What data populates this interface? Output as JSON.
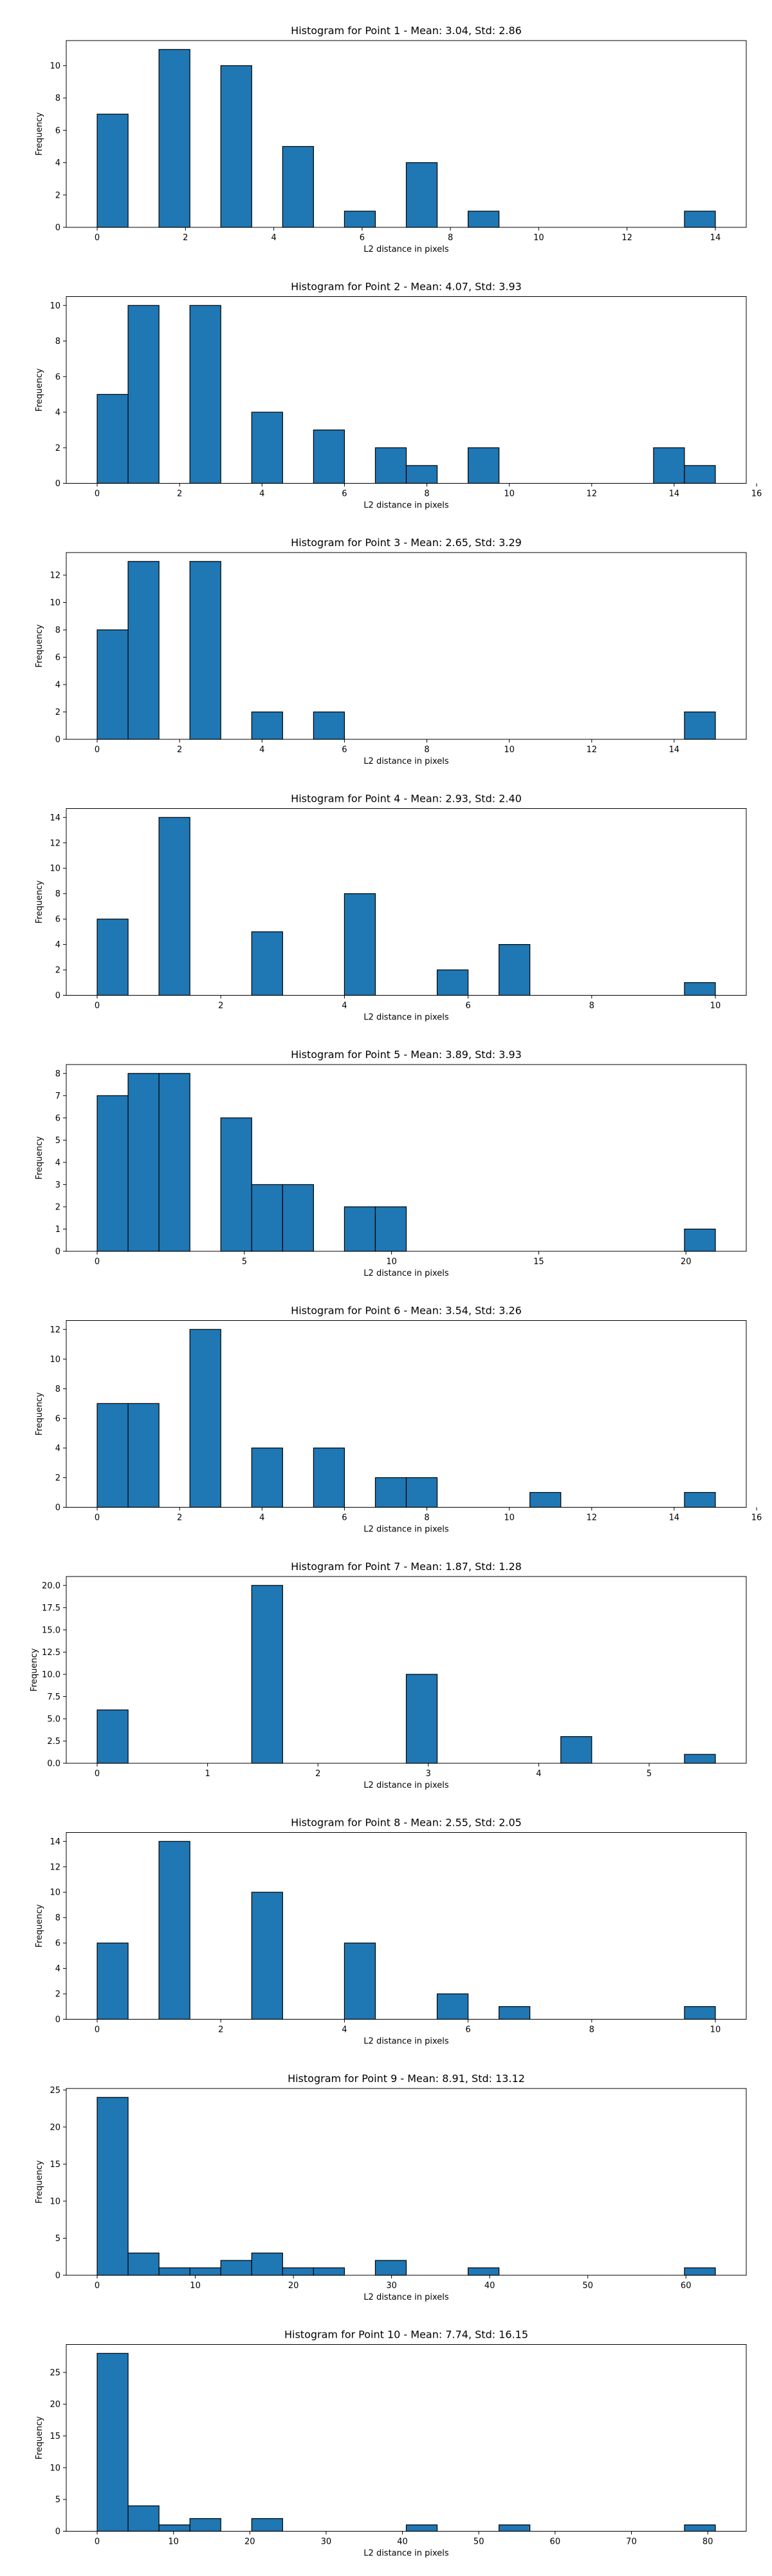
{
  "figure": {
    "bar_color": "#1f77b4",
    "edge_color": "#000000",
    "background": "#ffffff"
  },
  "chart_data": [
    {
      "type": "bar",
      "title": "Histogram for Point 1 - Mean: 3.04, Std: 2.86",
      "xlabel": "L2 distance in pixels",
      "ylabel": "Frequency",
      "bin_edges": [
        0.0,
        0.7,
        1.4,
        2.1,
        2.8,
        3.5,
        4.2,
        4.9,
        5.6,
        6.3,
        7.0,
        7.7,
        8.4,
        9.1,
        9.8,
        10.5,
        11.2,
        11.9,
        12.6,
        13.3,
        14.0
      ],
      "counts": [
        7,
        0,
        11,
        0,
        10,
        0,
        5,
        0,
        1,
        0,
        4,
        0,
        1,
        0,
        0,
        0,
        0,
        0,
        0,
        1
      ],
      "xlim": [
        -0.7,
        14.7
      ],
      "ylim": [
        0,
        11.55
      ],
      "xticks": [
        0,
        2,
        4,
        6,
        8,
        10,
        12,
        14
      ],
      "yticks": [
        0,
        2,
        4,
        6,
        8,
        10
      ]
    },
    {
      "type": "bar",
      "title": "Histogram for Point 2 - Mean: 4.07, Std: 3.93",
      "xlabel": "L2 distance in pixels",
      "ylabel": "Frequency",
      "bin_edges": [
        0.0,
        0.75,
        1.5,
        2.25,
        3.0,
        3.75,
        4.5,
        5.25,
        6.0,
        6.75,
        7.5,
        8.25,
        9.0,
        9.75,
        10.5,
        11.25,
        12.0,
        12.75,
        13.5,
        14.25,
        15.0
      ],
      "counts": [
        5,
        10,
        0,
        10,
        0,
        4,
        0,
        3,
        0,
        2,
        1,
        0,
        2,
        0,
        0,
        0,
        0,
        0,
        2,
        1
      ],
      "xlim": [
        -0.75,
        15.75
      ],
      "ylim": [
        0,
        10.5
      ],
      "xticks": [
        0,
        2,
        4,
        6,
        8,
        10,
        12,
        14,
        16
      ],
      "yticks": [
        0,
        2,
        4,
        6,
        8,
        10
      ]
    },
    {
      "type": "bar",
      "title": "Histogram for Point 3 - Mean: 2.65, Std: 3.29",
      "xlabel": "L2 distance in pixels",
      "ylabel": "Frequency",
      "bin_edges": [
        0.0,
        0.75,
        1.5,
        2.25,
        3.0,
        3.75,
        4.5,
        5.25,
        6.0,
        6.75,
        7.5,
        8.25,
        9.0,
        9.75,
        10.5,
        11.25,
        12.0,
        12.75,
        13.5,
        14.25,
        15.0
      ],
      "counts": [
        8,
        13,
        0,
        13,
        0,
        2,
        0,
        2,
        0,
        0,
        0,
        0,
        0,
        0,
        0,
        0,
        0,
        0,
        0,
        2
      ],
      "xlim": [
        -0.75,
        15.75
      ],
      "ylim": [
        0,
        13.65
      ],
      "xticks": [
        0,
        2,
        4,
        6,
        8,
        10,
        12,
        14
      ],
      "yticks": [
        0,
        2,
        4,
        6,
        8,
        10,
        12
      ]
    },
    {
      "type": "bar",
      "title": "Histogram for Point 4 - Mean: 2.93, Std: 2.40",
      "xlabel": "L2 distance in pixels",
      "ylabel": "Frequency",
      "bin_edges": [
        0.0,
        0.5,
        1.0,
        1.5,
        2.0,
        2.5,
        3.0,
        3.5,
        4.0,
        4.5,
        5.0,
        5.5,
        6.0,
        6.5,
        7.0,
        7.5,
        8.0,
        8.5,
        9.0,
        9.5,
        10.0
      ],
      "counts": [
        6,
        0,
        14,
        0,
        0,
        5,
        0,
        0,
        8,
        0,
        0,
        2,
        0,
        4,
        0,
        0,
        0,
        0,
        0,
        1
      ],
      "xlim": [
        -0.5,
        10.5
      ],
      "ylim": [
        0,
        14.7
      ],
      "xticks": [
        0,
        2,
        4,
        6,
        8,
        10
      ],
      "yticks": [
        0,
        2,
        4,
        6,
        8,
        10,
        12,
        14
      ]
    },
    {
      "type": "bar",
      "title": "Histogram for Point 5 - Mean: 3.89, Std: 3.93",
      "xlabel": "L2 distance in pixels",
      "ylabel": "Frequency",
      "bin_edges": [
        0.0,
        1.05,
        2.1,
        3.15,
        4.2,
        5.25,
        6.3,
        7.35,
        8.4,
        9.45,
        10.5,
        11.55,
        12.6,
        13.65,
        14.7,
        15.75,
        16.8,
        17.85,
        18.9,
        19.95,
        21.0
      ],
      "counts": [
        7,
        8,
        8,
        0,
        6,
        3,
        3,
        0,
        2,
        2,
        0,
        0,
        0,
        0,
        0,
        0,
        0,
        0,
        0,
        1
      ],
      "xlim": [
        -1.05,
        22.05
      ],
      "ylim": [
        0,
        8.4
      ],
      "xticks": [
        0,
        5,
        10,
        15,
        20
      ],
      "yticks": [
        0,
        1,
        2,
        3,
        4,
        5,
        6,
        7,
        8
      ]
    },
    {
      "type": "bar",
      "title": "Histogram for Point 6 - Mean: 3.54, Std: 3.26",
      "xlabel": "L2 distance in pixels",
      "ylabel": "Frequency",
      "bin_edges": [
        0.0,
        0.75,
        1.5,
        2.25,
        3.0,
        3.75,
        4.5,
        5.25,
        6.0,
        6.75,
        7.5,
        8.25,
        9.0,
        9.75,
        10.5,
        11.25,
        12.0,
        12.75,
        13.5,
        14.25,
        15.0
      ],
      "counts": [
        7,
        7,
        0,
        12,
        0,
        4,
        0,
        4,
        0,
        2,
        2,
        0,
        0,
        0,
        1,
        0,
        0,
        0,
        0,
        1
      ],
      "xlim": [
        -0.75,
        15.75
      ],
      "ylim": [
        0,
        12.6
      ],
      "xticks": [
        0,
        2,
        4,
        6,
        8,
        10,
        12,
        14,
        16
      ],
      "yticks": [
        0,
        2,
        4,
        6,
        8,
        10,
        12
      ]
    },
    {
      "type": "bar",
      "title": "Histogram for Point 7 - Mean: 1.87, Std: 1.28",
      "xlabel": "L2 distance in pixels",
      "ylabel": "Frequency",
      "bin_edges": [
        0.0,
        0.28,
        0.56,
        0.84,
        1.12,
        1.4,
        1.68,
        1.96,
        2.24,
        2.52,
        2.8,
        3.08,
        3.36,
        3.64,
        3.92,
        4.2,
        4.48,
        4.76,
        5.04,
        5.32,
        5.6
      ],
      "counts": [
        6,
        0,
        0,
        0,
        0,
        20,
        0,
        0,
        0,
        0,
        10,
        0,
        0,
        0,
        0,
        3,
        0,
        0,
        0,
        1
      ],
      "xlim": [
        -0.28,
        5.88
      ],
      "ylim": [
        0,
        21.0
      ],
      "xticks": [
        0,
        1,
        2,
        3,
        4,
        5
      ],
      "yticks": [
        0,
        2.5,
        5,
        7.5,
        10,
        12.5,
        15,
        17.5,
        20
      ],
      "ytick_labels": [
        "0.0",
        "2.5",
        "5.0",
        "7.5",
        "10.0",
        "12.5",
        "15.0",
        "17.5",
        "20.0"
      ]
    },
    {
      "type": "bar",
      "title": "Histogram for Point 8 - Mean: 2.55, Std: 2.05",
      "xlabel": "L2 distance in pixels",
      "ylabel": "Frequency",
      "bin_edges": [
        0.0,
        0.5,
        1.0,
        1.5,
        2.0,
        2.5,
        3.0,
        3.5,
        4.0,
        4.5,
        5.0,
        5.5,
        6.0,
        6.5,
        7.0,
        7.5,
        8.0,
        8.5,
        9.0,
        9.5,
        10.0
      ],
      "counts": [
        6,
        0,
        14,
        0,
        0,
        10,
        0,
        0,
        6,
        0,
        0,
        2,
        0,
        1,
        0,
        0,
        0,
        0,
        0,
        1
      ],
      "xlim": [
        -0.5,
        10.5
      ],
      "ylim": [
        0,
        14.7
      ],
      "xticks": [
        0,
        2,
        4,
        6,
        8,
        10
      ],
      "yticks": [
        0,
        2,
        4,
        6,
        8,
        10,
        12,
        14
      ]
    },
    {
      "type": "bar",
      "title": "Histogram for Point 9 - Mean: 8.91, Std: 13.12",
      "xlabel": "L2 distance in pixels",
      "ylabel": "Frequency",
      "bin_edges": [
        0.0,
        3.15,
        6.3,
        9.45,
        12.6,
        15.75,
        18.9,
        22.05,
        25.2,
        28.35,
        31.5,
        34.65,
        37.8,
        40.95,
        44.1,
        47.25,
        50.4,
        53.55,
        56.7,
        59.85,
        63.0
      ],
      "counts": [
        24,
        3,
        1,
        1,
        2,
        3,
        1,
        1,
        0,
        2,
        0,
        0,
        1,
        0,
        0,
        0,
        0,
        0,
        0,
        1
      ],
      "xlim": [
        -3.15,
        66.15
      ],
      "ylim": [
        0,
        25.2
      ],
      "xticks": [
        0,
        10,
        20,
        30,
        40,
        50,
        60
      ],
      "yticks": [
        0,
        5,
        10,
        15,
        20,
        25
      ]
    },
    {
      "type": "bar",
      "title": "Histogram for Point 10 - Mean: 7.74, Std: 16.15",
      "xlabel": "L2 distance in pixels",
      "ylabel": "Frequency",
      "bin_edges": [
        0.0,
        4.05,
        8.1,
        12.15,
        16.2,
        20.25,
        24.3,
        28.35,
        32.4,
        36.45,
        40.5,
        44.55,
        48.6,
        52.65,
        56.7,
        60.75,
        64.8,
        68.85,
        72.9,
        76.95,
        81.0
      ],
      "counts": [
        28,
        4,
        1,
        2,
        0,
        2,
        0,
        0,
        0,
        0,
        1,
        0,
        0,
        1,
        0,
        0,
        0,
        0,
        0,
        1
      ],
      "xlim": [
        -4.05,
        85.05
      ],
      "ylim": [
        0,
        29.4
      ],
      "xticks": [
        0,
        10,
        20,
        30,
        40,
        50,
        60,
        70,
        80
      ],
      "yticks": [
        0,
        5,
        10,
        15,
        20,
        25
      ]
    }
  ]
}
